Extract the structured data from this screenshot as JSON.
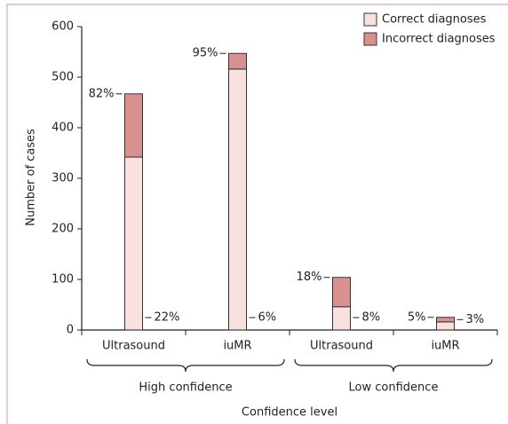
{
  "chart_data": {
    "type": "stacked_bar",
    "y_label": "Number of cases",
    "x_label": "Confidence level",
    "groups": [
      {
        "label": "High confidence",
        "categories": [
          "Ultrasound",
          "iuMR"
        ]
      },
      {
        "label": "Low confidence",
        "categories": [
          "Ultrasound",
          "iuMR"
        ]
      }
    ],
    "series": [
      {
        "name": "Correct diagnoses",
        "color": "#f8e1de",
        "values": [
          342,
          516,
          46,
          16
        ],
        "percent_labels": [
          "82%",
          "95%",
          "18%",
          "5%"
        ]
      },
      {
        "name": "Incorrect diagnoses",
        "color": "#d9918f",
        "values": [
          125,
          31,
          58,
          9
        ],
        "percent_labels": [
          "22%",
          "6%",
          "8%",
          "3%"
        ]
      }
    ],
    "ylim": [
      0,
      600
    ],
    "yticks": [
      0,
      100,
      200,
      300,
      400,
      500,
      600
    ],
    "legend": "top-right"
  }
}
